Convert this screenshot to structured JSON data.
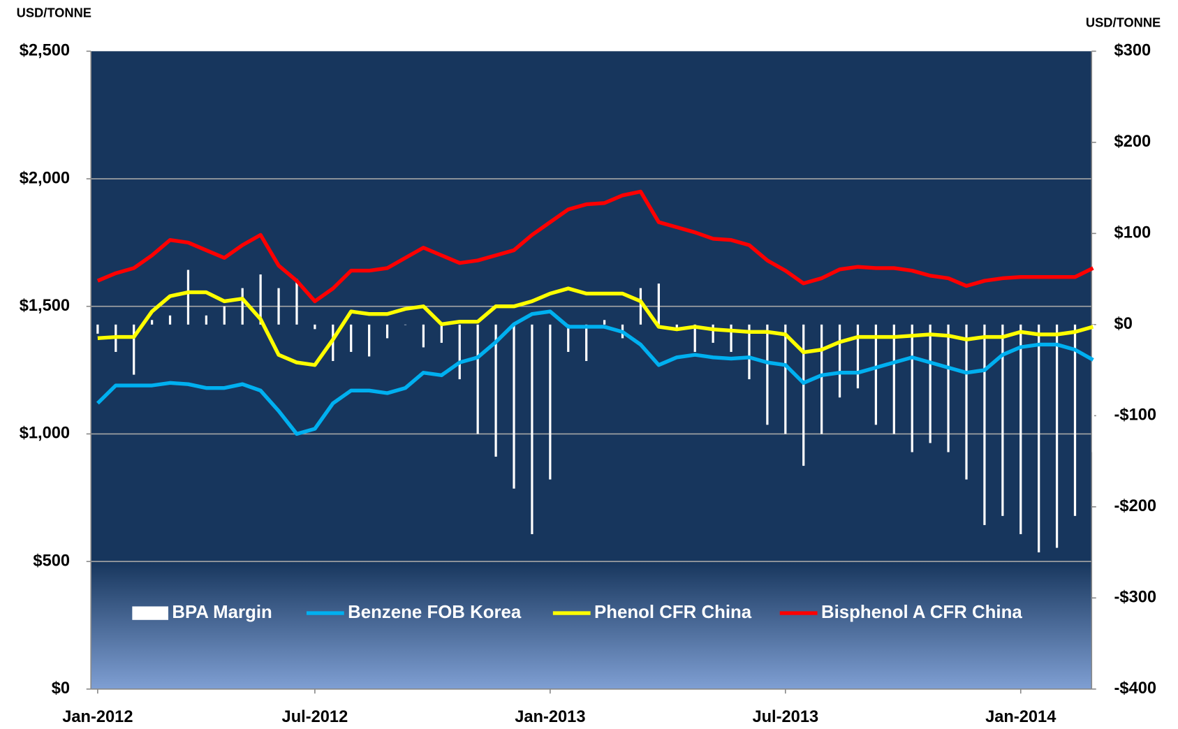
{
  "chart_data": {
    "type": "combo",
    "y_label": "USD/TONNE",
    "y2_label": "USD/TONNE",
    "categories": [
      "Jan-2012",
      null,
      null,
      null,
      null,
      null,
      null,
      null,
      null,
      null,
      null,
      null,
      "Jul-2012",
      null,
      null,
      null,
      null,
      null,
      null,
      null,
      null,
      null,
      null,
      null,
      null,
      "Jan-2013",
      null,
      null,
      null,
      null,
      null,
      null,
      null,
      null,
      null,
      null,
      null,
      null,
      "Jul-2013",
      null,
      null,
      null,
      null,
      null,
      null,
      null,
      null,
      null,
      null,
      null,
      null,
      "Jan-2014",
      null,
      null,
      null,
      null
    ],
    "series": [
      {
        "name": "BPA Margin",
        "type": "bar",
        "axis": "y2",
        "color": "#ffffff",
        "values": [
          -10,
          -30,
          -55,
          5,
          10,
          60,
          10,
          20,
          40,
          55,
          40,
          50,
          -5,
          -40,
          -30,
          -35,
          -15,
          0,
          -25,
          -20,
          -60,
          -120,
          -145,
          -180,
          -230,
          -170,
          -30,
          -40,
          5,
          -15,
          40,
          45,
          -5,
          -30,
          -20,
          -30,
          -60,
          -110,
          -120,
          -155,
          -120,
          -80,
          -70,
          -110,
          -120,
          -140,
          -130,
          -140,
          -170,
          -220,
          -210,
          -230,
          -250,
          -245,
          -210,
          -140
        ]
      },
      {
        "name": "Benzene FOB Korea",
        "type": "line",
        "color": "#00b0f0",
        "values": [
          1120,
          1190,
          1190,
          1190,
          1200,
          1195,
          1180,
          1180,
          1195,
          1170,
          1090,
          1000,
          1020,
          1120,
          1170,
          1170,
          1160,
          1180,
          1240,
          1230,
          1280,
          1300,
          1360,
          1430,
          1470,
          1480,
          1420,
          1420,
          1420,
          1400,
          1350,
          1270,
          1300,
          1310,
          1300,
          1295,
          1300,
          1280,
          1270,
          1200,
          1230,
          1240,
          1240,
          1260,
          1280,
          1300,
          1280,
          1260,
          1240,
          1250,
          1310,
          1340,
          1350,
          1350,
          1330,
          1290
        ]
      },
      {
        "name": "Phenol CFR China",
        "type": "line",
        "color": "#ffff00",
        "values": [
          1375,
          1380,
          1380,
          1480,
          1540,
          1555,
          1555,
          1520,
          1530,
          1450,
          1310,
          1280,
          1270,
          1370,
          1480,
          1470,
          1470,
          1490,
          1500,
          1430,
          1440,
          1440,
          1500,
          1500,
          1520,
          1550,
          1570,
          1550,
          1550,
          1550,
          1520,
          1420,
          1410,
          1420,
          1410,
          1405,
          1400,
          1400,
          1390,
          1320,
          1330,
          1360,
          1380,
          1380,
          1380,
          1385,
          1390,
          1385,
          1370,
          1380,
          1380,
          1400,
          1390,
          1390,
          1400,
          1420
        ]
      },
      {
        "name": "Bisphenol A CFR China",
        "type": "line",
        "color": "#ff0000",
        "values": [
          1600,
          1630,
          1650,
          1700,
          1760,
          1750,
          1720,
          1690,
          1740,
          1780,
          1660,
          1600,
          1520,
          1570,
          1640,
          1640,
          1650,
          1690,
          1730,
          1700,
          1670,
          1680,
          1700,
          1720,
          1780,
          1830,
          1880,
          1900,
          1905,
          1935,
          1950,
          1830,
          1810,
          1790,
          1765,
          1760,
          1740,
          1680,
          1640,
          1590,
          1610,
          1645,
          1655,
          1650,
          1650,
          1640,
          1620,
          1610,
          1580,
          1600,
          1610,
          1615,
          1615,
          1615,
          1615,
          1650
        ]
      }
    ],
    "ylim": [
      0,
      2500
    ],
    "yticks": [
      {
        "value": 0,
        "label": "$0"
      },
      {
        "value": 500,
        "label": "$500"
      },
      {
        "value": 1000,
        "label": "$1,000"
      },
      {
        "value": 1500,
        "label": "$1,500"
      },
      {
        "value": 2000,
        "label": "$2,000"
      },
      {
        "value": 2500,
        "label": "$2,500"
      }
    ],
    "y2lim": [
      -400,
      300
    ],
    "y2ticks": [
      {
        "value": -400,
        "label": "-$400"
      },
      {
        "value": -300,
        "label": "-$300"
      },
      {
        "value": -200,
        "label": "-$200"
      },
      {
        "value": -100,
        "label": "-$100"
      },
      {
        "value": 0,
        "label": "$0"
      },
      {
        "value": 100,
        "label": "$100"
      },
      {
        "value": 200,
        "label": "$200"
      },
      {
        "value": 300,
        "label": "$300"
      }
    ],
    "grid": true,
    "legend": "bottom"
  }
}
